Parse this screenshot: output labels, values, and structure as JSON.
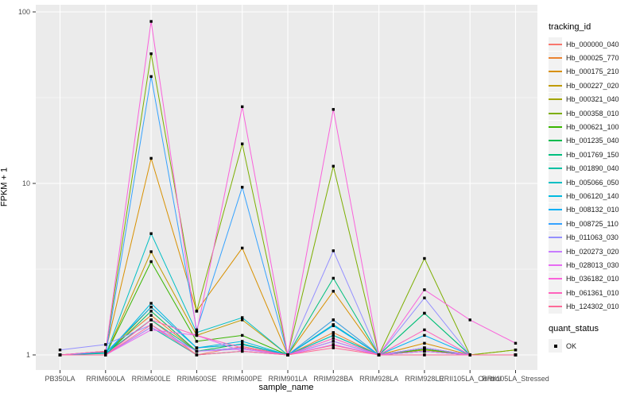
{
  "chart_data": {
    "type": "line",
    "title": "",
    "xlabel": "sample_name",
    "ylabel": "FPKM + 1",
    "y_scale": "log10",
    "ylim": [
      0.82,
      110
    ],
    "y_ticks": [
      {
        "label": "1",
        "value": 1
      },
      {
        "label": "10",
        "value": 10
      },
      {
        "label": "100",
        "value": 100
      }
    ],
    "y_minor": [
      3.1623,
      31.623
    ],
    "grid": "on",
    "legend_position": "right",
    "panel_bg": "#EBEBEB",
    "grid_color": "#FFFFFF",
    "tick_label_color": "#4D4D4D",
    "marker": "black-square",
    "marker_color": "#000000",
    "categories": [
      "PB350LA",
      "RRIM600LA",
      "RRIM600LE",
      "RRIM600SE",
      "RRIM600PE",
      "RRIM901LA",
      "RRIM928BA",
      "RRIM928LA",
      "RRIM928LE",
      "RRII105LA_Control",
      "RRII105LA_Stressed"
    ],
    "series": [
      {
        "name": "Hb_000000_040",
        "color": "#F8766D",
        "values": [
          1,
          1,
          1.6,
          1,
          1.12,
          1,
          1.14,
          1,
          1,
          1,
          1
        ]
      },
      {
        "name": "Hb_000025_770",
        "color": "#EA8331",
        "values": [
          1,
          1.04,
          1.7,
          1.05,
          1.1,
          1,
          1.35,
          1,
          1.05,
          1,
          1
        ]
      },
      {
        "name": "Hb_000175_210",
        "color": "#D89000",
        "values": [
          1,
          1.05,
          14,
          1.8,
          4.2,
          1,
          2.35,
          1,
          1.17,
          1,
          1
        ]
      },
      {
        "name": "Hb_000227_020",
        "color": "#C09B00",
        "values": [
          1,
          1,
          4.0,
          1.3,
          1.6,
          1,
          1.6,
          1,
          1.1,
          1,
          1
        ]
      },
      {
        "name": "Hb_000321_040",
        "color": "#A3A500",
        "values": [
          1,
          1,
          1.9,
          1.1,
          1.15,
          1,
          1.5,
          1,
          1.07,
          1,
          1.07
        ]
      },
      {
        "name": "Hb_000358_010",
        "color": "#7CAE00",
        "values": [
          1,
          1.05,
          57,
          1.8,
          17,
          1,
          12.6,
          1,
          3.65,
          1,
          1.07
        ]
      },
      {
        "name": "Hb_000621_100",
        "color": "#39B600",
        "values": [
          1,
          1,
          3.5,
          1.2,
          1.3,
          1,
          1.5,
          1,
          1.08,
          1,
          1
        ]
      },
      {
        "name": "Hb_001235_040",
        "color": "#00BB4E",
        "values": [
          1,
          1,
          1.8,
          1.05,
          1.16,
          1,
          1.3,
          1,
          1.75,
          1,
          1
        ]
      },
      {
        "name": "Hb_001769_150",
        "color": "#00BF7D",
        "values": [
          1,
          1.02,
          1.6,
          1.05,
          1.1,
          1,
          2.8,
          1,
          1.75,
          1,
          1
        ]
      },
      {
        "name": "Hb_001890_040",
        "color": "#00C1A3",
        "values": [
          1,
          1,
          1.45,
          1,
          1.05,
          1,
          1.2,
          1,
          1.05,
          1,
          1
        ]
      },
      {
        "name": "Hb_005066_050",
        "color": "#00BFC4",
        "values": [
          1,
          1,
          5.1,
          1.35,
          1.65,
          1,
          1.3,
          1,
          1.05,
          1,
          1
        ]
      },
      {
        "name": "Hb_006120_140",
        "color": "#00BAE0",
        "values": [
          1,
          1,
          2.0,
          1.1,
          1.2,
          1,
          1.5,
          1,
          1.1,
          1,
          1
        ]
      },
      {
        "name": "Hb_008132_010",
        "color": "#00B0F6",
        "values": [
          1,
          1.03,
          1.9,
          1.1,
          1.15,
          1,
          1.48,
          1,
          1.3,
          1,
          1
        ]
      },
      {
        "name": "Hb_008725_110",
        "color": "#35A2FF",
        "values": [
          1,
          1,
          42,
          1.4,
          9.5,
          1,
          1.6,
          1,
          1.1,
          1,
          1
        ]
      },
      {
        "name": "Hb_011063_030",
        "color": "#9590FF",
        "values": [
          1.07,
          1.15,
          1.5,
          1.05,
          1.1,
          1,
          4.05,
          1,
          2.15,
          1,
          1
        ]
      },
      {
        "name": "Hb_020273_020",
        "color": "#C77CFF",
        "values": [
          1,
          1,
          1.45,
          1.05,
          1.08,
          1,
          1.2,
          1,
          1.1,
          1,
          1
        ]
      },
      {
        "name": "Hb_028013_030",
        "color": "#E76BF3",
        "values": [
          1,
          1,
          1.4,
          1.3,
          1.05,
          1,
          1.15,
          1,
          1.05,
          1,
          1
        ]
      },
      {
        "name": "Hb_036182_010",
        "color": "#FA62DB",
        "values": [
          1,
          1.05,
          88,
          1.35,
          28,
          1,
          27,
          1,
          2.4,
          1.6,
          1.17
        ]
      },
      {
        "name": "Hb_061361_010",
        "color": "#FF62BC",
        "values": [
          1,
          1,
          1.6,
          1.3,
          1.1,
          1,
          1.25,
          1,
          1.4,
          1,
          1
        ]
      },
      {
        "name": "Hb_124302_010",
        "color": "#FF6A98",
        "values": [
          1,
          1,
          1.5,
          1,
          1.05,
          1,
          1.1,
          1,
          1,
          1,
          1
        ]
      }
    ],
    "legend": {
      "color_title": "tracking_id",
      "shape_title": "quant_status",
      "shape_items": [
        {
          "label": "OK",
          "marker": "black-square"
        }
      ]
    }
  }
}
